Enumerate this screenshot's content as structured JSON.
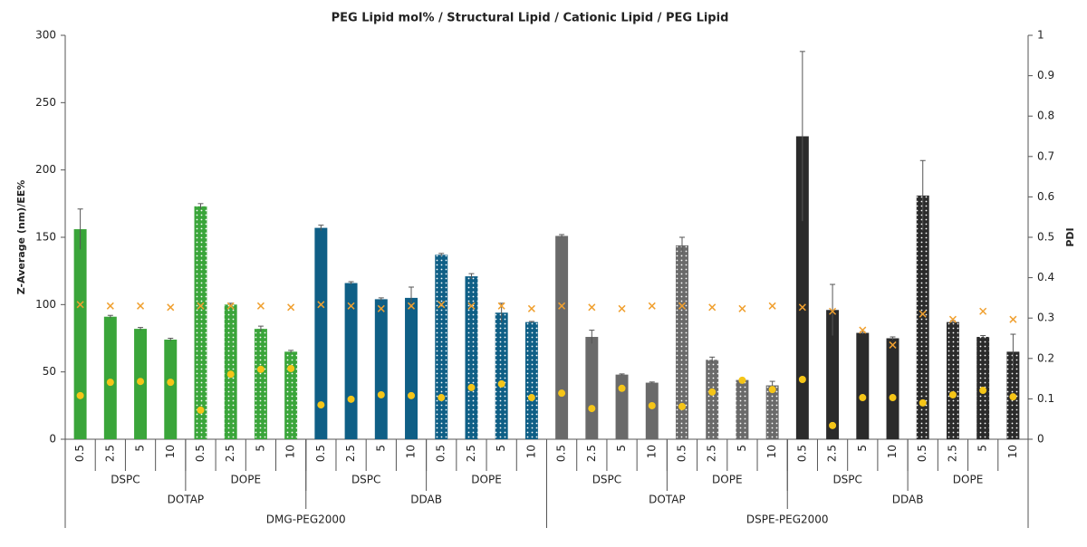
{
  "chart_data": {
    "type": "bar",
    "title": "PEG Lipid mol% / Structural Lipid / Cationic Lipid / PEG Lipid",
    "y_label": "Z-Average (nm)/EE%",
    "y2_label": "PDI",
    "categories": [
      "0.5",
      "2.5",
      "5",
      "10",
      "0.5",
      "2.5",
      "5",
      "10",
      "0.5",
      "2.5",
      "5",
      "10",
      "0.5",
      "2.5",
      "5",
      "10",
      "0.5",
      "2.5",
      "5",
      "10",
      "0.5",
      "2.5",
      "5",
      "10",
      "0.5",
      "2.5",
      "5",
      "10",
      "0.5",
      "2.5",
      "5",
      "10"
    ],
    "structural_groups": [
      "DSPC",
      "DOPE",
      "DSPC",
      "DOPE",
      "DSPC",
      "DOPE",
      "DSPC",
      "DOPE"
    ],
    "structural_patterns": [
      "solid",
      "dotted",
      "solid",
      "dotted",
      "solid",
      "dotted",
      "solid",
      "dotted"
    ],
    "cationic_groups": [
      "DOTAP",
      "DDAB",
      "DOTAP",
      "DDAB"
    ],
    "cationic_colors": [
      "#3aa53a",
      "#0f5f86",
      "#6a6a6a",
      "#2b2b2b"
    ],
    "peg_groups": [
      "DMG-PEG2000",
      "DSPE-PEG2000"
    ],
    "series": [
      {
        "type": "bar",
        "values": [
          156,
          91,
          82,
          74,
          173,
          100,
          82,
          65,
          157,
          116,
          104,
          105,
          137,
          121,
          94,
          87,
          151,
          76,
          48,
          42,
          144,
          59,
          44,
          40,
          225,
          96,
          79,
          75,
          181,
          87,
          76,
          65
        ],
        "errors": [
          15,
          1,
          1,
          1,
          2,
          1,
          2,
          1,
          2,
          1,
          1,
          8,
          1,
          2,
          7,
          0.5,
          1,
          5,
          0.5,
          0.5,
          6,
          2,
          1,
          3,
          63,
          19,
          1,
          1,
          26,
          1,
          1,
          13
        ]
      },
      {
        "type": "x-marker",
        "color": "#f0a030",
        "values": [
          100,
          99,
          99,
          98,
          99,
          99,
          99,
          98,
          100,
          99,
          97,
          99,
          100,
          99,
          99,
          97,
          99,
          98,
          97,
          99,
          99,
          98,
          97,
          99,
          98,
          95,
          81,
          70,
          93,
          89,
          95,
          89
        ]
      },
      {
        "type": "dot",
        "axis": "y2",
        "color": "#f5c518",
        "values": [
          0.108,
          0.141,
          0.143,
          0.141,
          0.072,
          0.161,
          0.173,
          0.175,
          0.085,
          0.099,
          0.11,
          0.108,
          0.103,
          0.128,
          0.137,
          0.103,
          0.114,
          0.076,
          0.126,
          0.083,
          0.081,
          0.117,
          0.146,
          0.123,
          0.148,
          0.034,
          0.103,
          0.103,
          0.09,
          0.11,
          0.121,
          0.105
        ]
      }
    ],
    "ylim": [
      0,
      300
    ],
    "yticks": [
      0,
      50,
      100,
      150,
      200,
      250,
      300
    ],
    "y2lim": [
      0,
      1
    ],
    "y2ticks": [
      0,
      0.1,
      0.2,
      0.3,
      0.4,
      0.5,
      0.6,
      0.7,
      0.8,
      0.9,
      1
    ]
  }
}
